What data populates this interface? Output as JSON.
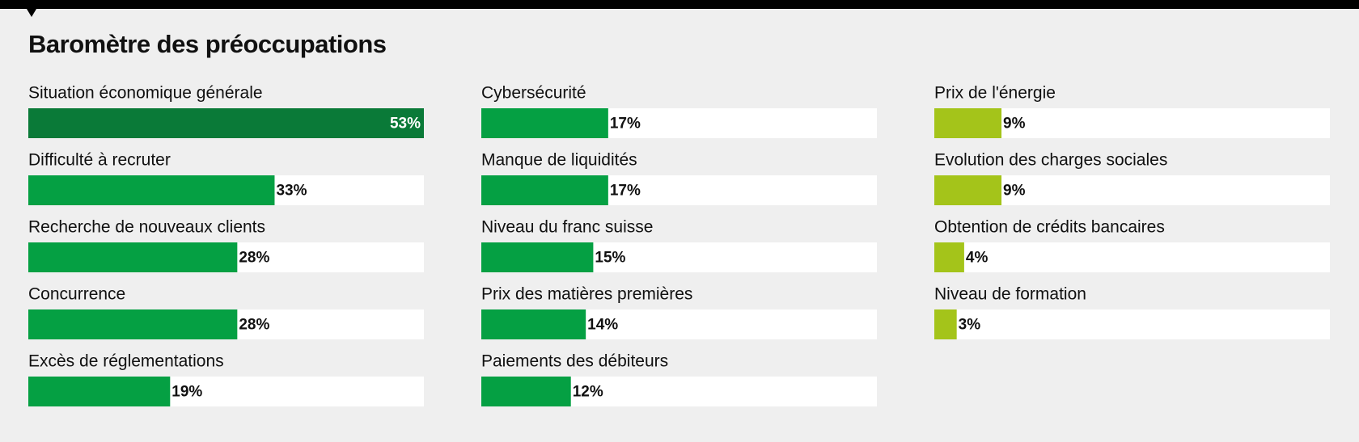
{
  "chart_data": {
    "type": "bar",
    "orientation": "horizontal",
    "title": "Baromètre des préoccupations",
    "categories": [
      "Situation économique générale",
      "Difficulté à recruter",
      "Recherche de nouveaux clients",
      "Concurrence",
      "Excès de réglementations",
      "Cybersécurité",
      "Manque de liquidités",
      "Niveau du franc suisse",
      "Prix des matières premières",
      "Paiements des débiteurs",
      "Prix de l'énergie",
      "Evolution des charges sociales",
      "Obtention de crédits bancaires",
      "Niveau de formation"
    ],
    "values": [
      53,
      33,
      28,
      28,
      19,
      17,
      17,
      15,
      14,
      12,
      9,
      9,
      4,
      3
    ],
    "value_labels": [
      "53%",
      "33%",
      "28%",
      "28%",
      "19%",
      "17%",
      "17%",
      "15%",
      "14%",
      "12%",
      "9%",
      "9%",
      "4%",
      "3%"
    ],
    "colors": [
      "#0a7a38",
      "#05a043",
      "#05a043",
      "#05a043",
      "#05a043",
      "#05a043",
      "#05a043",
      "#05a043",
      "#05a043",
      "#05a043",
      "#a4c41a",
      "#a4c41a",
      "#a4c41a",
      "#a4c41a"
    ],
    "xlim": [
      0,
      53
    ]
  }
}
